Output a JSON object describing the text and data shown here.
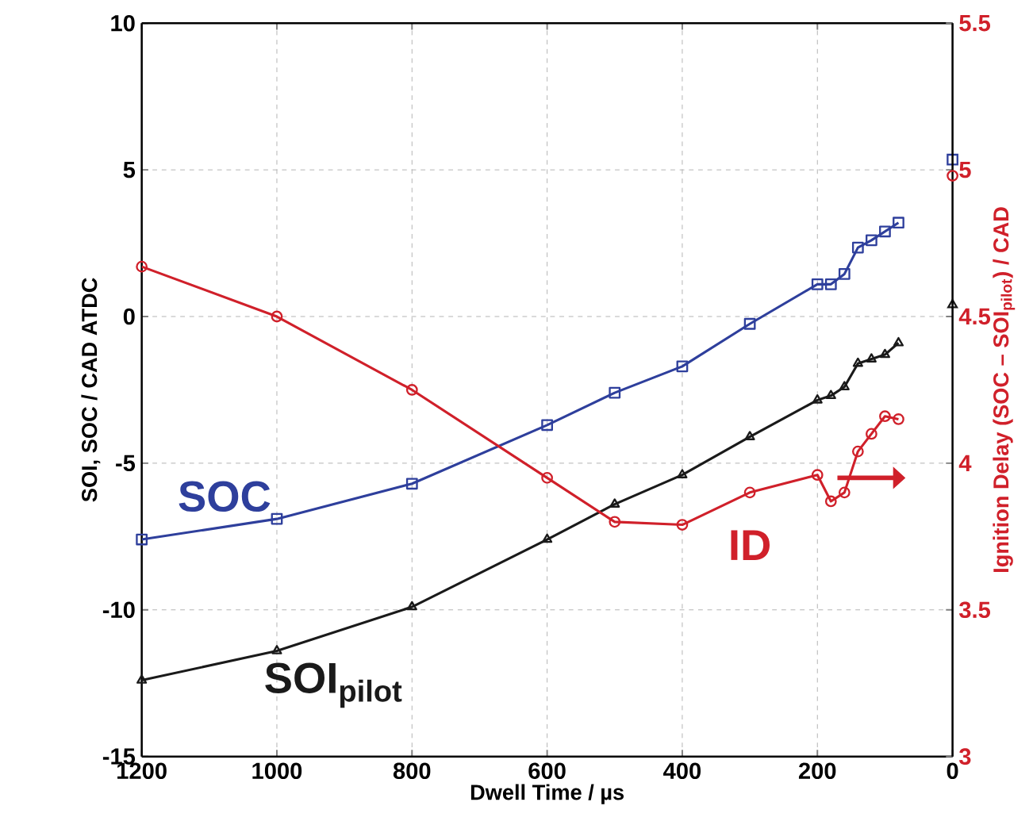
{
  "chart_data": {
    "type": "line",
    "xlabel": "Dwell Time / µs",
    "ylabel": "SOI, SOC / CAD ATDC",
    "y2label": "Ignition Delay (SOC – SOI$_{pilot}$) / CAD",
    "xlim": [
      1200,
      0
    ],
    "xticks": [
      1200,
      1000,
      800,
      600,
      400,
      200,
      0
    ],
    "ylim": [
      -15,
      10
    ],
    "yticks": [
      -15,
      -10,
      -5,
      0,
      5,
      10
    ],
    "y2lim": [
      3,
      5.5
    ],
    "y2ticks": [
      3,
      3.5,
      4,
      4.5,
      5,
      5.5
    ],
    "grid": true,
    "line_style": "solid",
    "series": [
      {
        "name": "SOC",
        "color": "#2e3f9c",
        "marker": "square",
        "x": [
          1200,
          1000,
          800,
          600,
          500,
          400,
          300,
          200,
          180,
          160,
          140,
          120,
          100,
          80
        ],
        "values": [
          -7.6,
          -6.9,
          -5.7,
          -3.7,
          -2.6,
          -1.7,
          -0.25,
          1.1,
          1.1,
          1.45,
          2.35,
          2.6,
          2.9,
          3.2
        ]
      },
      {
        "name": "SOI$_{pilot}$",
        "color": "#1a1a1a",
        "marker": "triangle",
        "x": [
          1200,
          1000,
          800,
          600,
          500,
          400,
          300,
          200,
          180,
          160,
          140,
          120,
          100,
          80
        ],
        "values": [
          -12.4,
          -11.4,
          -9.9,
          -7.6,
          -6.4,
          -5.4,
          -4.1,
          -2.85,
          -2.7,
          -2.4,
          -1.6,
          -1.45,
          -1.3,
          -0.9
        ]
      },
      {
        "name": "ID",
        "color": "#d0202a",
        "marker": "circle",
        "axis": "y2",
        "x": [
          1200,
          1000,
          800,
          600,
          500,
          400,
          300,
          200,
          180,
          160,
          140,
          120,
          100,
          80
        ],
        "values": [
          4.67,
          4.5,
          4.25,
          3.95,
          3.8,
          3.79,
          3.9,
          3.96,
          3.87,
          3.9,
          4.04,
          4.1,
          4.16,
          4.15
        ]
      },
      {
        "type": "scatter",
        "color": "#2e3f9c",
        "marker": "square",
        "x": [
          0
        ],
        "values": [
          5.35
        ]
      },
      {
        "type": "scatter",
        "color": "#1a1a1a",
        "marker": "triangle",
        "x": [
          0
        ],
        "values": [
          0.4
        ]
      },
      {
        "type": "scatter",
        "color": "#d0202a",
        "marker": "circle",
        "axis": "y2",
        "x": [
          0
        ],
        "values": [
          4.98
        ]
      }
    ]
  }
}
